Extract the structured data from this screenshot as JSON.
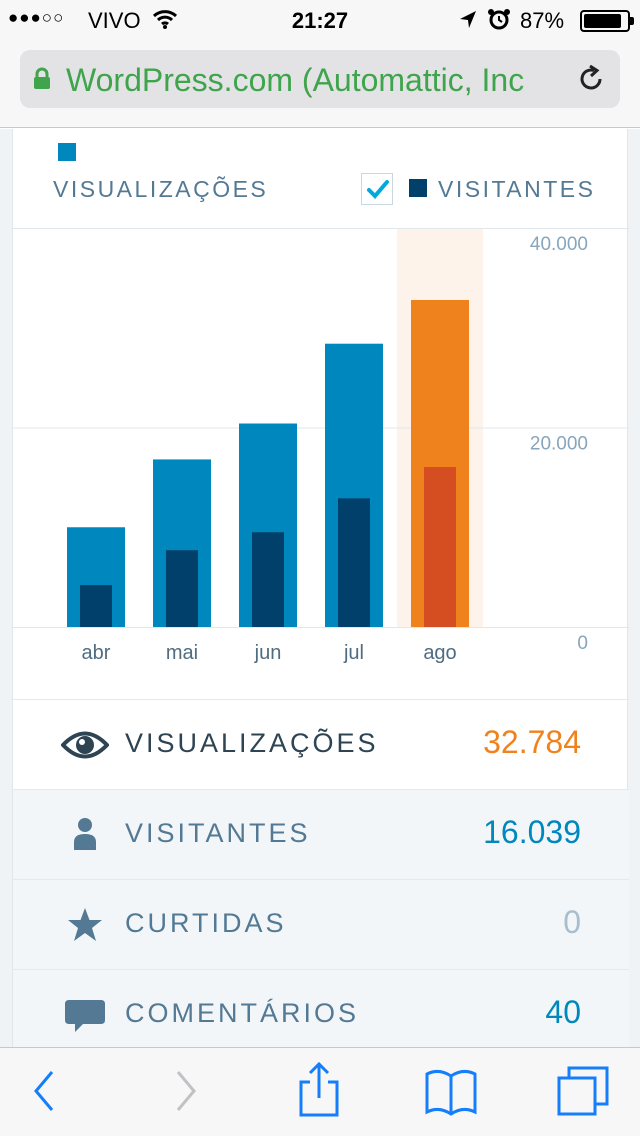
{
  "status_bar": {
    "signal": "●●●○○",
    "carrier": "VIVO",
    "time": "21:27",
    "battery_percent": "87%",
    "battery_level": 0.87
  },
  "browser": {
    "url_text": "WordPress.com (Automattic, Inc"
  },
  "legend": {
    "views_label": "VISUALIZAÇÕES",
    "visitors_label": "VISITANTES",
    "visitors_checked": true
  },
  "chart_data": {
    "type": "bar",
    "categories": [
      "abr",
      "mai",
      "jun",
      "jul",
      "ago"
    ],
    "series": [
      {
        "name": "VISUALIZAÇÕES",
        "values": [
          10000,
          16800,
          20400,
          28400,
          32784
        ]
      },
      {
        "name": "VISITANTES",
        "values": [
          4200,
          7700,
          9500,
          12900,
          16039
        ]
      }
    ],
    "ylim": [
      0,
      40000
    ],
    "y_ticks": [
      "40.000",
      "20.000",
      "0"
    ],
    "y_tick_values": [
      40000,
      20000,
      0
    ],
    "highlight_index": 4,
    "colors": {
      "views": "#0087be",
      "visitors": "#00406a",
      "views_highlight": "#f0821e",
      "visitors_highlight": "#d54e21",
      "highlight_bg": "#fdf3ea",
      "grid": "#e1e8ec",
      "tick_text": "#87a6bc"
    }
  },
  "stats": [
    {
      "icon": "eye-icon",
      "label": "VISUALIZAÇÕES",
      "value": "32.784"
    },
    {
      "icon": "person-icon",
      "label": "VISITANTES",
      "value": "16.039"
    },
    {
      "icon": "star-icon",
      "label": "CURTIDAS",
      "value": "0"
    },
    {
      "icon": "comment-icon",
      "label": "COMENTÁRIOS",
      "value": "40"
    }
  ],
  "toolbar": {
    "icons": [
      "back-icon",
      "forward-icon",
      "share-icon",
      "bookmarks-icon",
      "tabs-icon"
    ]
  }
}
